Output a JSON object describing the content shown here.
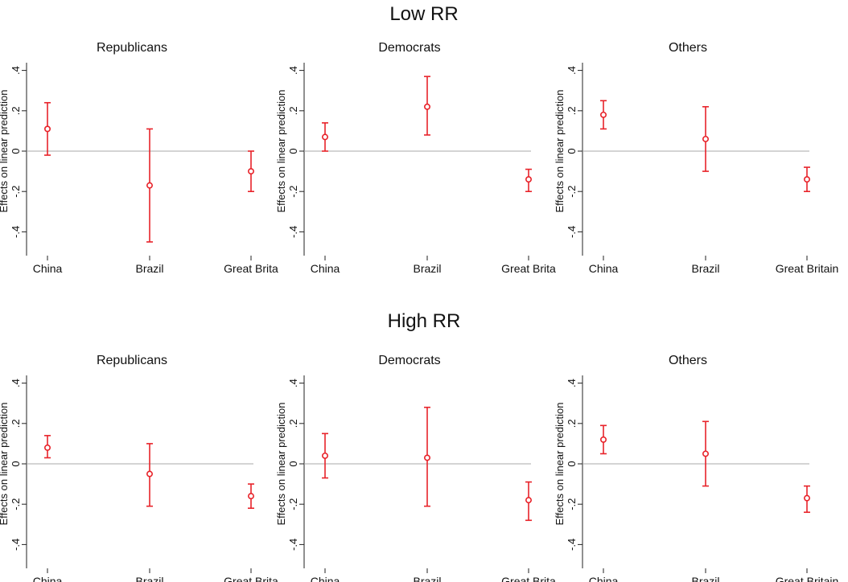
{
  "figure": {
    "groups": [
      {
        "title": "Low RR"
      },
      {
        "title": "High RR"
      }
    ]
  },
  "chart_data": [
    {
      "type": "scatter",
      "group": "Low RR",
      "title": "Republicans",
      "ylabel": "Effects on linear prediction",
      "xlabel": "",
      "categories": [
        "China",
        "Brazil",
        "Great Brita"
      ],
      "values": [
        0.11,
        -0.17,
        -0.1
      ],
      "ci_low": [
        -0.02,
        -0.45,
        -0.2
      ],
      "ci_high": [
        0.24,
        0.11,
        0.0
      ],
      "ylim": [
        -0.45,
        0.45
      ],
      "yticks": [
        ".4",
        ".2",
        "0",
        "-.2",
        "-.4"
      ],
      "reference_line": 0,
      "marker_color": "#e8232a",
      "grid": false
    },
    {
      "type": "scatter",
      "group": "Low RR",
      "title": "Democrats",
      "ylabel": "Effects on linear prediction",
      "xlabel": "",
      "categories": [
        "China",
        "Brazil",
        "Great Brita"
      ],
      "values": [
        0.07,
        0.22,
        -0.14
      ],
      "ci_low": [
        0.0,
        0.08,
        -0.2
      ],
      "ci_high": [
        0.14,
        0.37,
        -0.09
      ],
      "ylim": [
        -0.45,
        0.45
      ],
      "yticks": [
        ".4",
        ".2",
        "0",
        "-.2",
        "-.4"
      ],
      "reference_line": 0,
      "marker_color": "#e8232a",
      "grid": false
    },
    {
      "type": "scatter",
      "group": "Low RR",
      "title": "Others",
      "ylabel": "Effects on linear prediction",
      "xlabel": "",
      "categories": [
        "China",
        "Brazil",
        "Great Britain"
      ],
      "values": [
        0.18,
        0.06,
        -0.14
      ],
      "ci_low": [
        0.11,
        -0.1,
        -0.2
      ],
      "ci_high": [
        0.25,
        0.22,
        -0.08
      ],
      "ylim": [
        -0.45,
        0.45
      ],
      "yticks": [
        ".4",
        ".2",
        "0",
        "-.2",
        "-.4"
      ],
      "reference_line": 0,
      "marker_color": "#e8232a",
      "grid": false
    },
    {
      "type": "scatter",
      "group": "High RR",
      "title": "Republicans",
      "ylabel": "Effects on linear prediction",
      "xlabel": "",
      "categories": [
        "China",
        "Brazil",
        "Great Brita"
      ],
      "values": [
        0.08,
        -0.05,
        -0.16
      ],
      "ci_low": [
        0.03,
        -0.21,
        -0.22
      ],
      "ci_high": [
        0.14,
        0.1,
        -0.1
      ],
      "ylim": [
        -0.45,
        0.45
      ],
      "yticks": [
        ".4",
        ".2",
        "0",
        "-.2",
        "-.4"
      ],
      "reference_line": 0,
      "marker_color": "#e8232a",
      "grid": false
    },
    {
      "type": "scatter",
      "group": "High RR",
      "title": "Democrats",
      "ylabel": "Effects on linear prediction",
      "xlabel": "",
      "categories": [
        "China",
        "Brazil",
        "Great Brita"
      ],
      "values": [
        0.04,
        0.03,
        -0.18
      ],
      "ci_low": [
        -0.07,
        -0.21,
        -0.28
      ],
      "ci_high": [
        0.15,
        0.28,
        -0.09
      ],
      "ylim": [
        -0.45,
        0.45
      ],
      "yticks": [
        ".4",
        ".2",
        "0",
        "-.2",
        "-.4"
      ],
      "reference_line": 0,
      "marker_color": "#e8232a",
      "grid": false
    },
    {
      "type": "scatter",
      "group": "High RR",
      "title": "Others",
      "ylabel": "Effects on linear prediction",
      "xlabel": "",
      "categories": [
        "China",
        "Brazil",
        "Great Britain"
      ],
      "values": [
        0.12,
        0.05,
        -0.17
      ],
      "ci_low": [
        0.05,
        -0.11,
        -0.24
      ],
      "ci_high": [
        0.19,
        0.21,
        -0.11
      ],
      "ylim": [
        -0.45,
        0.45
      ],
      "yticks": [
        ".4",
        ".2",
        "0",
        "-.2",
        "-.4"
      ],
      "reference_line": 0,
      "marker_color": "#e8232a",
      "grid": false
    }
  ]
}
